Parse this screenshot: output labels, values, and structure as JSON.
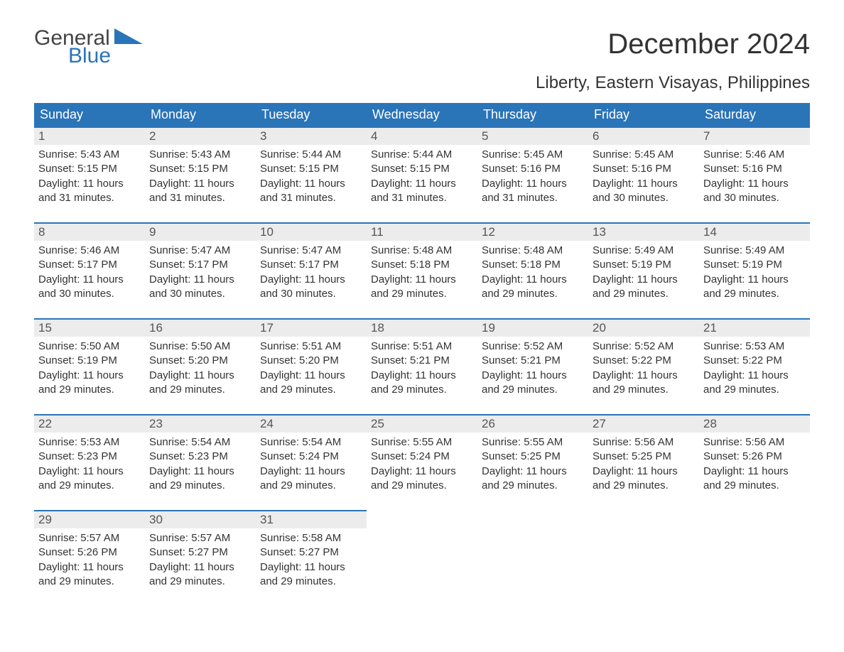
{
  "logo": {
    "line1": "General",
    "line2": "Blue",
    "triangle_color": "#2a74b8"
  },
  "title": "December 2024",
  "subtitle": "Liberty, Eastern Visayas, Philippines",
  "colors": {
    "header_bg": "#2a74b8",
    "header_text": "#ffffff",
    "daynum_bg": "#ececec",
    "daynum_border": "#2a74b8",
    "body_text": "#333333",
    "page_bg": "#ffffff"
  },
  "day_headers": [
    "Sunday",
    "Monday",
    "Tuesday",
    "Wednesday",
    "Thursday",
    "Friday",
    "Saturday"
  ],
  "weeks": [
    [
      {
        "n": "1",
        "sunrise": "5:43 AM",
        "sunset": "5:15 PM",
        "daylight": "11 hours and 31 minutes."
      },
      {
        "n": "2",
        "sunrise": "5:43 AM",
        "sunset": "5:15 PM",
        "daylight": "11 hours and 31 minutes."
      },
      {
        "n": "3",
        "sunrise": "5:44 AM",
        "sunset": "5:15 PM",
        "daylight": "11 hours and 31 minutes."
      },
      {
        "n": "4",
        "sunrise": "5:44 AM",
        "sunset": "5:15 PM",
        "daylight": "11 hours and 31 minutes."
      },
      {
        "n": "5",
        "sunrise": "5:45 AM",
        "sunset": "5:16 PM",
        "daylight": "11 hours and 31 minutes."
      },
      {
        "n": "6",
        "sunrise": "5:45 AM",
        "sunset": "5:16 PM",
        "daylight": "11 hours and 30 minutes."
      },
      {
        "n": "7",
        "sunrise": "5:46 AM",
        "sunset": "5:16 PM",
        "daylight": "11 hours and 30 minutes."
      }
    ],
    [
      {
        "n": "8",
        "sunrise": "5:46 AM",
        "sunset": "5:17 PM",
        "daylight": "11 hours and 30 minutes."
      },
      {
        "n": "9",
        "sunrise": "5:47 AM",
        "sunset": "5:17 PM",
        "daylight": "11 hours and 30 minutes."
      },
      {
        "n": "10",
        "sunrise": "5:47 AM",
        "sunset": "5:17 PM",
        "daylight": "11 hours and 30 minutes."
      },
      {
        "n": "11",
        "sunrise": "5:48 AM",
        "sunset": "5:18 PM",
        "daylight": "11 hours and 29 minutes."
      },
      {
        "n": "12",
        "sunrise": "5:48 AM",
        "sunset": "5:18 PM",
        "daylight": "11 hours and 29 minutes."
      },
      {
        "n": "13",
        "sunrise": "5:49 AM",
        "sunset": "5:19 PM",
        "daylight": "11 hours and 29 minutes."
      },
      {
        "n": "14",
        "sunrise": "5:49 AM",
        "sunset": "5:19 PM",
        "daylight": "11 hours and 29 minutes."
      }
    ],
    [
      {
        "n": "15",
        "sunrise": "5:50 AM",
        "sunset": "5:19 PM",
        "daylight": "11 hours and 29 minutes."
      },
      {
        "n": "16",
        "sunrise": "5:50 AM",
        "sunset": "5:20 PM",
        "daylight": "11 hours and 29 minutes."
      },
      {
        "n": "17",
        "sunrise": "5:51 AM",
        "sunset": "5:20 PM",
        "daylight": "11 hours and 29 minutes."
      },
      {
        "n": "18",
        "sunrise": "5:51 AM",
        "sunset": "5:21 PM",
        "daylight": "11 hours and 29 minutes."
      },
      {
        "n": "19",
        "sunrise": "5:52 AM",
        "sunset": "5:21 PM",
        "daylight": "11 hours and 29 minutes."
      },
      {
        "n": "20",
        "sunrise": "5:52 AM",
        "sunset": "5:22 PM",
        "daylight": "11 hours and 29 minutes."
      },
      {
        "n": "21",
        "sunrise": "5:53 AM",
        "sunset": "5:22 PM",
        "daylight": "11 hours and 29 minutes."
      }
    ],
    [
      {
        "n": "22",
        "sunrise": "5:53 AM",
        "sunset": "5:23 PM",
        "daylight": "11 hours and 29 minutes."
      },
      {
        "n": "23",
        "sunrise": "5:54 AM",
        "sunset": "5:23 PM",
        "daylight": "11 hours and 29 minutes."
      },
      {
        "n": "24",
        "sunrise": "5:54 AM",
        "sunset": "5:24 PM",
        "daylight": "11 hours and 29 minutes."
      },
      {
        "n": "25",
        "sunrise": "5:55 AM",
        "sunset": "5:24 PM",
        "daylight": "11 hours and 29 minutes."
      },
      {
        "n": "26",
        "sunrise": "5:55 AM",
        "sunset": "5:25 PM",
        "daylight": "11 hours and 29 minutes."
      },
      {
        "n": "27",
        "sunrise": "5:56 AM",
        "sunset": "5:25 PM",
        "daylight": "11 hours and 29 minutes."
      },
      {
        "n": "28",
        "sunrise": "5:56 AM",
        "sunset": "5:26 PM",
        "daylight": "11 hours and 29 minutes."
      }
    ],
    [
      {
        "n": "29",
        "sunrise": "5:57 AM",
        "sunset": "5:26 PM",
        "daylight": "11 hours and 29 minutes."
      },
      {
        "n": "30",
        "sunrise": "5:57 AM",
        "sunset": "5:27 PM",
        "daylight": "11 hours and 29 minutes."
      },
      {
        "n": "31",
        "sunrise": "5:58 AM",
        "sunset": "5:27 PM",
        "daylight": "11 hours and 29 minutes."
      },
      null,
      null,
      null,
      null
    ]
  ],
  "labels": {
    "sunrise": "Sunrise: ",
    "sunset": "Sunset: ",
    "daylight": "Daylight: "
  }
}
